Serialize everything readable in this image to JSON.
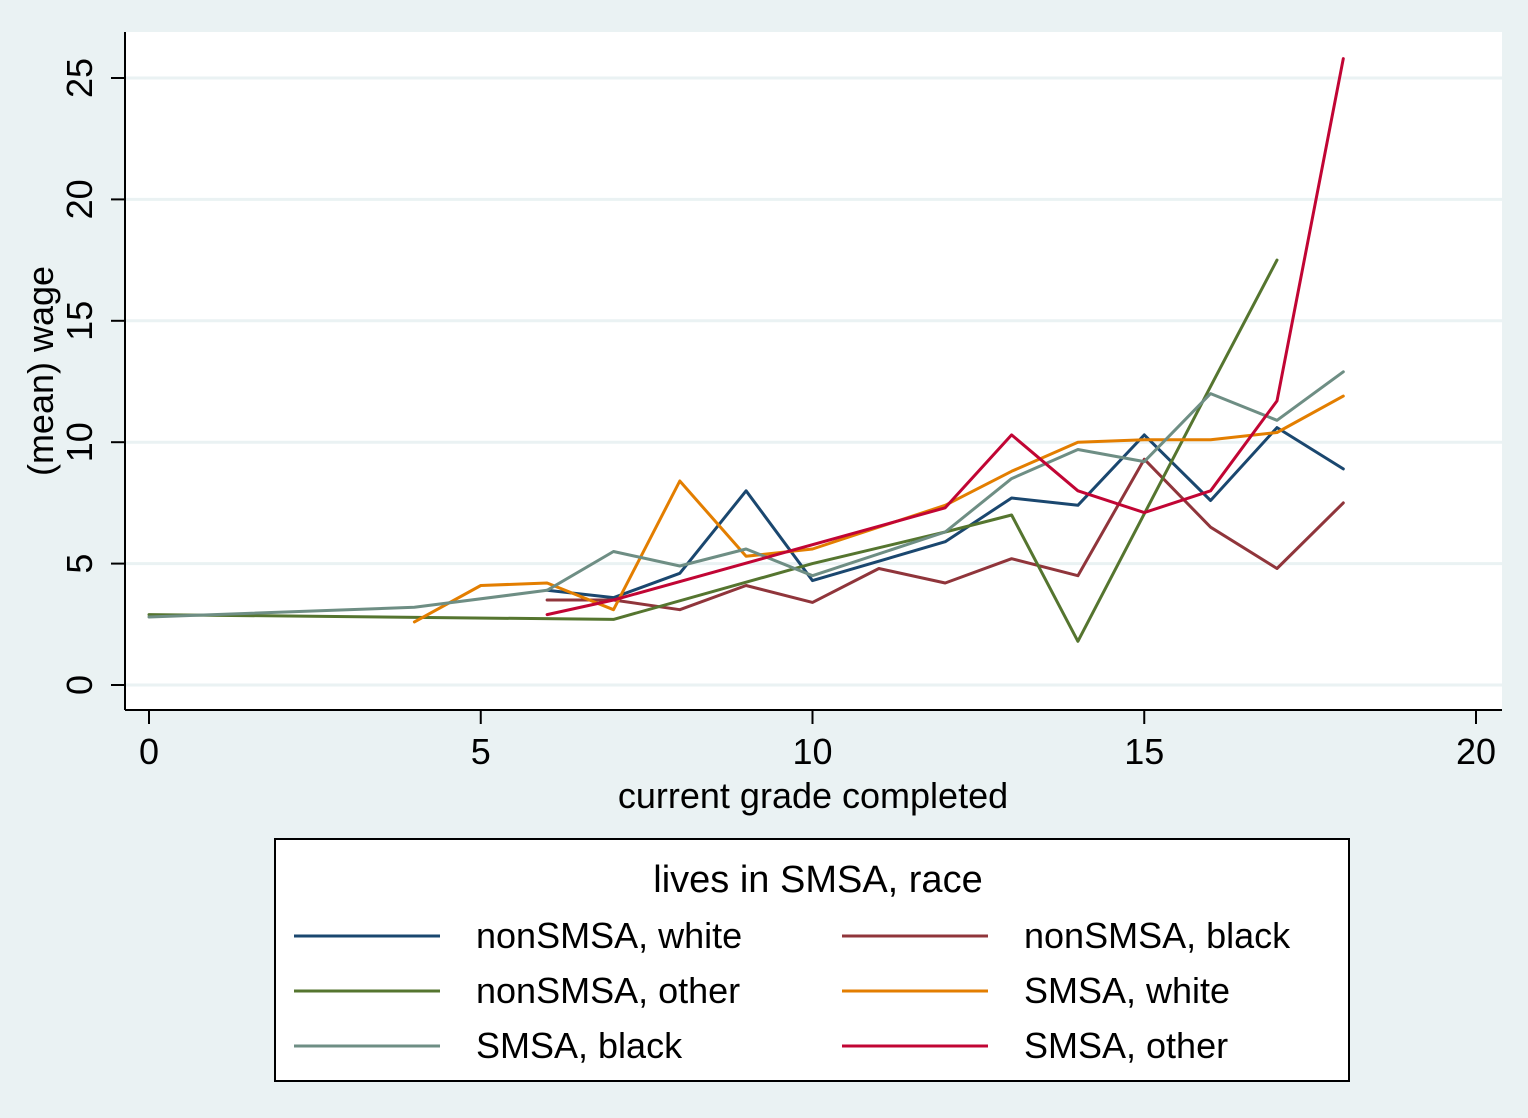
{
  "chart_data": {
    "type": "line",
    "xlabel": "current grade completed",
    "ylabel": "(mean) wage",
    "xlim": [
      0,
      20
    ],
    "ylim": [
      0,
      25
    ],
    "x_ticks": [
      "0",
      "5",
      "10",
      "15",
      "20"
    ],
    "y_ticks": [
      "0",
      "5",
      "10",
      "15",
      "20",
      "25"
    ],
    "grid": "horizontal",
    "legend": {
      "title": "lives in SMSA, race",
      "placement": "bottom"
    },
    "series": [
      {
        "name": "nonSMSA, white",
        "color": "#1a476f",
        "x": [
          6,
          7,
          8,
          9,
          10,
          12,
          13,
          14,
          15,
          16,
          17,
          18
        ],
        "y": [
          3.9,
          3.6,
          4.6,
          8.0,
          4.3,
          5.9,
          7.7,
          7.4,
          10.3,
          7.6,
          10.6,
          8.9
        ]
      },
      {
        "name": "nonSMSA, black",
        "color": "#90353b",
        "x": [
          6,
          7,
          8,
          9,
          10,
          11,
          12,
          13,
          14,
          15,
          16,
          17,
          18
        ],
        "y": [
          3.5,
          3.5,
          3.1,
          4.1,
          3.4,
          4.8,
          4.2,
          5.2,
          4.5,
          9.3,
          6.5,
          4.8,
          7.5
        ]
      },
      {
        "name": "nonSMSA, other",
        "color": "#55752f",
        "x": [
          0,
          7,
          10,
          12,
          13,
          14,
          16,
          17
        ],
        "y": [
          2.9,
          2.7,
          5.0,
          6.3,
          7.0,
          1.8,
          12.3,
          17.5
        ]
      },
      {
        "name": "SMSA, white",
        "color": "#e37e00",
        "x": [
          4,
          5,
          6,
          7,
          8,
          9,
          10,
          12,
          13,
          14,
          15,
          16,
          17,
          18
        ],
        "y": [
          2.6,
          4.1,
          4.2,
          3.1,
          8.4,
          5.3,
          5.6,
          7.4,
          8.8,
          10.0,
          10.1,
          10.1,
          10.4,
          11.9
        ]
      },
      {
        "name": "SMSA, black",
        "color": "#6e8e84",
        "x": [
          0,
          4,
          6,
          7,
          8,
          9,
          10,
          12,
          13,
          14,
          15,
          16,
          17,
          18
        ],
        "y": [
          2.8,
          3.2,
          3.9,
          5.5,
          4.9,
          5.6,
          4.5,
          6.3,
          8.5,
          9.7,
          9.2,
          12.0,
          10.9,
          12.9
        ]
      },
      {
        "name": "SMSA, other",
        "color": "#c10534",
        "x": [
          6,
          7,
          12,
          13,
          14,
          15,
          16,
          17,
          18
        ],
        "y": [
          2.9,
          3.5,
          7.3,
          10.3,
          8.0,
          7.1,
          8.0,
          11.7,
          25.8
        ]
      }
    ]
  }
}
